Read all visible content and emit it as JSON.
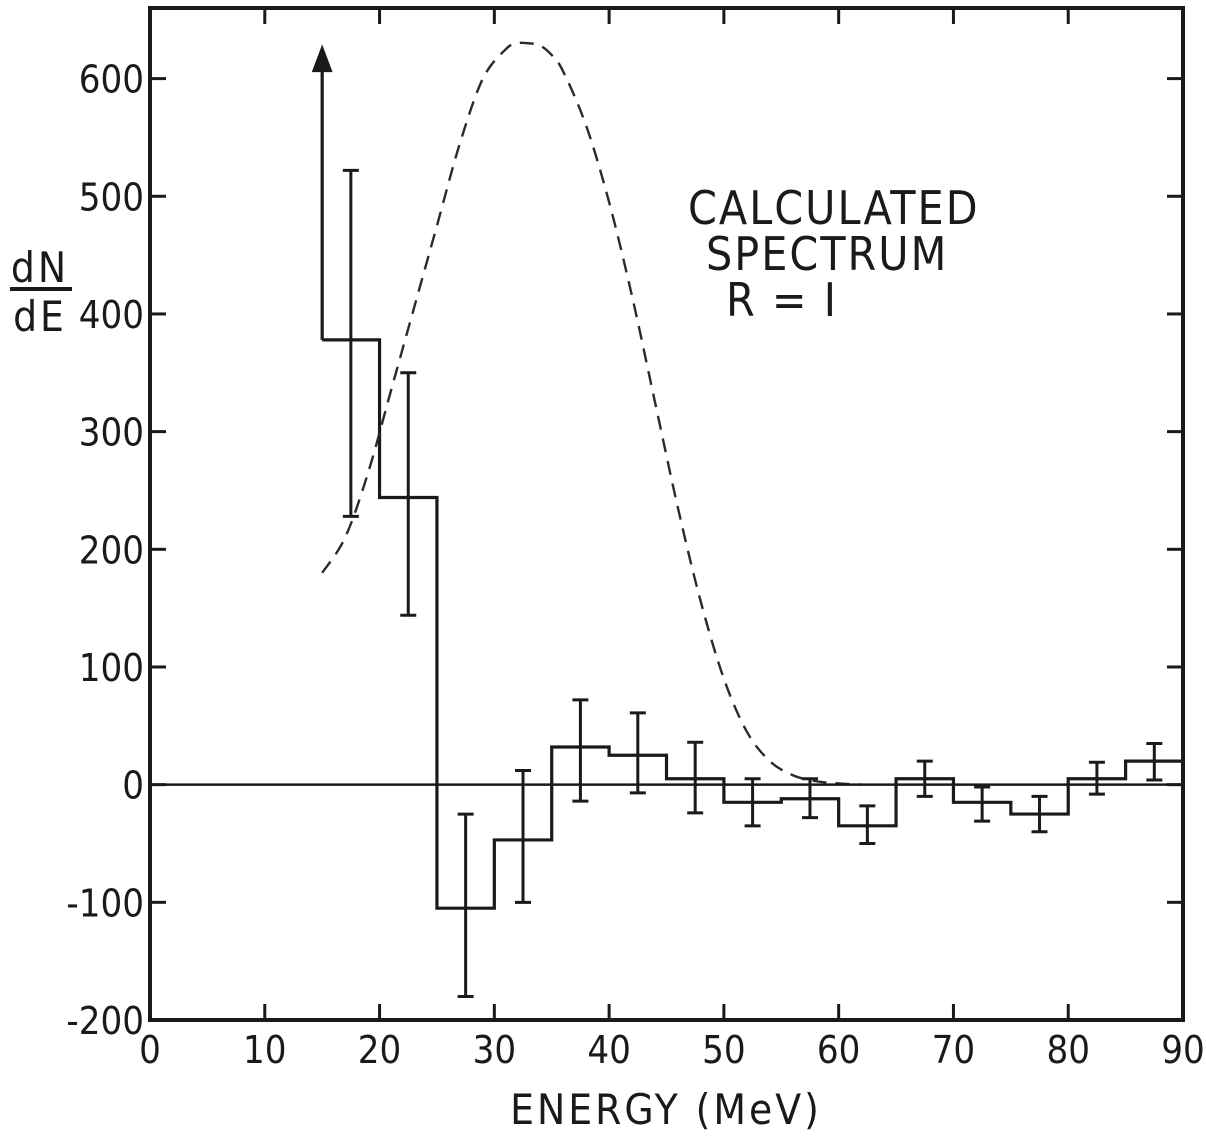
{
  "chart_data": {
    "type": "line",
    "title": "",
    "xlabel": "ENERGY (MeV)",
    "ylabel_numerator": "dN",
    "ylabel_denominator": "dE",
    "xlim": [
      0,
      90
    ],
    "ylim": [
      -200,
      660
    ],
    "x_ticks": [
      0,
      10,
      20,
      30,
      40,
      50,
      60,
      70,
      80,
      90
    ],
    "y_ticks": [
      -200,
      -100,
      0,
      100,
      200,
      300,
      400,
      500,
      600
    ],
    "x_tick_labels": [
      "0",
      "10",
      "20",
      "30",
      "40",
      "50",
      "60",
      "70",
      "80",
      "90"
    ],
    "y_tick_labels": [
      "-200",
      "-100",
      "0",
      "100",
      "200",
      "300",
      "400",
      "500",
      "600"
    ],
    "grid": false,
    "legend": "none",
    "annotations": [
      "CALCULATED",
      "SPECTRUM",
      "R = I"
    ],
    "series": [
      {
        "style": "histogram",
        "bins": [
          {
            "x0": 15,
            "x1": 20,
            "y": 378,
            "xc": 17.5,
            "err_low": 228,
            "err_high": 522
          },
          {
            "x0": 20,
            "x1": 25,
            "y": 244,
            "xc": 22.5,
            "err_low": 144,
            "err_high": 350
          },
          {
            "x0": 25,
            "x1": 30,
            "y": -105,
            "xc": 27.5,
            "err_low": -180,
            "err_high": -25
          },
          {
            "x0": 30,
            "x1": 35,
            "y": -47,
            "xc": 32.5,
            "err_low": -100,
            "err_high": 12
          },
          {
            "x0": 35,
            "x1": 40,
            "y": 32,
            "xc": 37.5,
            "err_low": -14,
            "err_high": 72
          },
          {
            "x0": 40,
            "x1": 45,
            "y": 25,
            "xc": 42.5,
            "err_low": -7,
            "err_high": 61
          },
          {
            "x0": 45,
            "x1": 50,
            "y": 5,
            "xc": 47.5,
            "err_low": -24,
            "err_high": 36
          },
          {
            "x0": 50,
            "x1": 55,
            "y": -15,
            "xc": 52.5,
            "err_low": -35,
            "err_high": 5
          },
          {
            "x0": 55,
            "x1": 60,
            "y": -12,
            "xc": 57.5,
            "err_low": -28,
            "err_high": 5
          },
          {
            "x0": 60,
            "x1": 65,
            "y": -35,
            "xc": 62.5,
            "err_low": -50,
            "err_high": -18
          },
          {
            "x0": 65,
            "x1": 70,
            "y": 5,
            "xc": 67.5,
            "err_low": -10,
            "err_high": 20
          },
          {
            "x0": 70,
            "x1": 75,
            "y": -15,
            "xc": 72.5,
            "err_low": -31,
            "err_high": -2
          },
          {
            "x0": 75,
            "x1": 80,
            "y": -25,
            "xc": 77.5,
            "err_low": -40,
            "err_high": -10
          },
          {
            "x0": 80,
            "x1": 85,
            "y": 5,
            "xc": 82.5,
            "err_low": -8,
            "err_high": 19
          },
          {
            "x0": 85,
            "x1": 90,
            "y": 20,
            "xc": 87.5,
            "err_low": 4,
            "err_high": 35
          }
        ],
        "upper_limit_arrow": {
          "x": 15,
          "y_from": 378,
          "y_to": 625
        }
      },
      {
        "style": "dashed",
        "x": [
          15,
          17,
          19,
          21,
          23,
          25,
          27,
          29,
          31,
          32,
          33,
          34,
          35,
          36,
          38,
          40,
          42,
          44,
          46,
          48,
          50,
          52,
          54,
          56,
          58,
          60,
          62
        ],
        "y": [
          180,
          210,
          265,
          335,
          405,
          475,
          545,
          600,
          625,
          630,
          630,
          628,
          620,
          606,
          560,
          495,
          415,
          325,
          235,
          155,
          90,
          45,
          20,
          8,
          3,
          1,
          0
        ]
      }
    ]
  }
}
